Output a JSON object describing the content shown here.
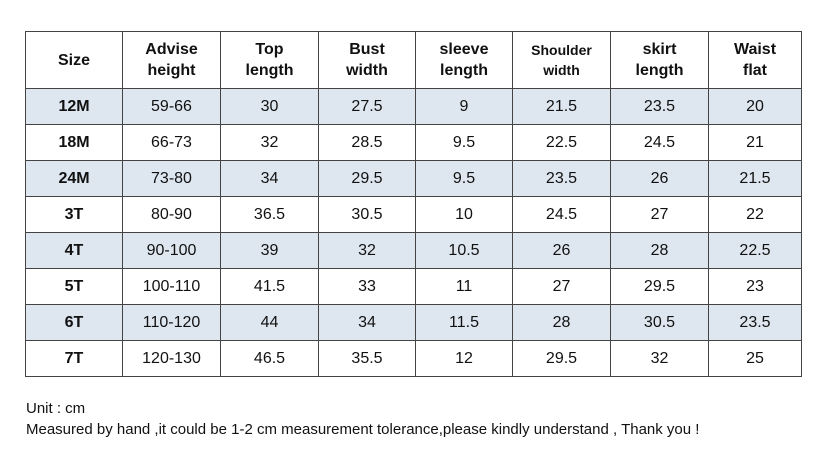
{
  "table": {
    "headers": [
      [
        "Size"
      ],
      [
        "Advise",
        "height"
      ],
      [
        "Top",
        "length"
      ],
      [
        "Bust",
        "width"
      ],
      [
        "sleeve",
        "length"
      ],
      [
        "Shoulder",
        "width"
      ],
      [
        "skirt",
        "length"
      ],
      [
        "Waist",
        "flat"
      ]
    ],
    "rows": [
      [
        "12M",
        "59-66",
        "30",
        "27.5",
        "9",
        "21.5",
        "23.5",
        "20"
      ],
      [
        "18M",
        "66-73",
        "32",
        "28.5",
        "9.5",
        "22.5",
        "24.5",
        "21"
      ],
      [
        "24M",
        "73-80",
        "34",
        "29.5",
        "9.5",
        "23.5",
        "26",
        "21.5"
      ],
      [
        "3T",
        "80-90",
        "36.5",
        "30.5",
        "10",
        "24.5",
        "27",
        "22"
      ],
      [
        "4T",
        "90-100",
        "39",
        "32",
        "10.5",
        "26",
        "28",
        "22.5"
      ],
      [
        "5T",
        "100-110",
        "41.5",
        "33",
        "11",
        "27",
        "29.5",
        "23"
      ],
      [
        "6T",
        "110-120",
        "44",
        "34",
        "11.5",
        "28",
        "30.5",
        "23.5"
      ],
      [
        "7T",
        "120-130",
        "46.5",
        "35.5",
        "12",
        "29.5",
        "32",
        "25"
      ]
    ]
  },
  "notes": {
    "unit": "Unit : cm",
    "tolerance": "Measured by hand ,it could be 1-2 cm measurement tolerance,please kindly understand , Thank you !"
  },
  "colors": {
    "shaded_row": "#dee6ef",
    "border": "#444444"
  }
}
